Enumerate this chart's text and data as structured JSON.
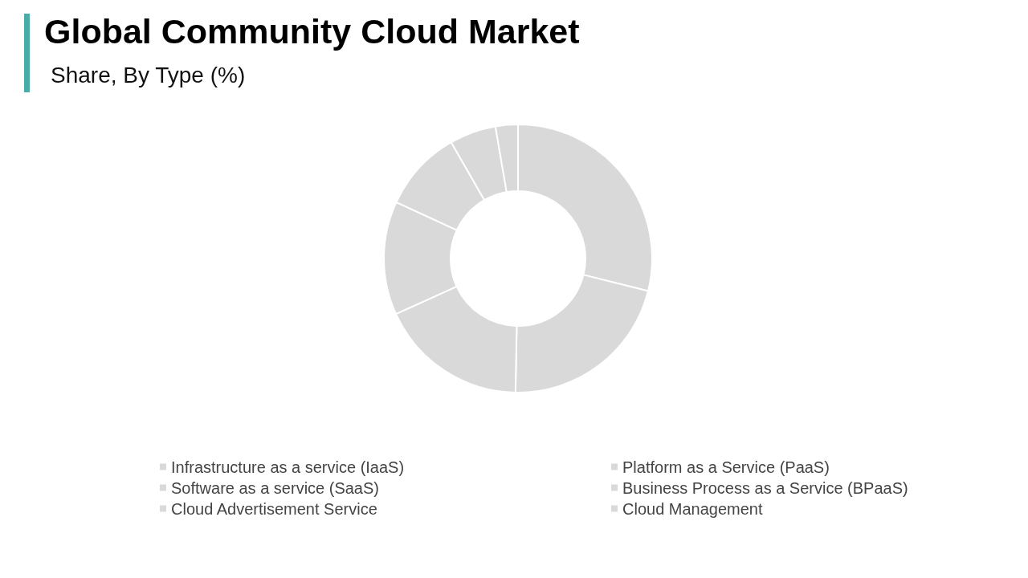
{
  "chart_data": {
    "type": "donut",
    "title": "Global Community Cloud Market",
    "subtitle": "Share, By Type (%)",
    "categories": [
      "Infrastructure as a service (IaaS)",
      "Platform as a Service (PaaS)",
      "Software as a service (SaaS)",
      "Business Process as a Service (BPaaS)",
      "Cloud Advertisement Service",
      "Cloud Management",
      null
    ],
    "values": [
      28.9,
      21.4,
      17.9,
      13.7,
      9.8,
      5.6,
      2.7
    ],
    "colors": [
      "#d9d9d9",
      "#d9d9d9",
      "#d9d9d9",
      "#d9d9d9",
      "#d9d9d9",
      "#d9d9d9",
      "#d9d9d9"
    ],
    "legend": "bottom"
  }
}
